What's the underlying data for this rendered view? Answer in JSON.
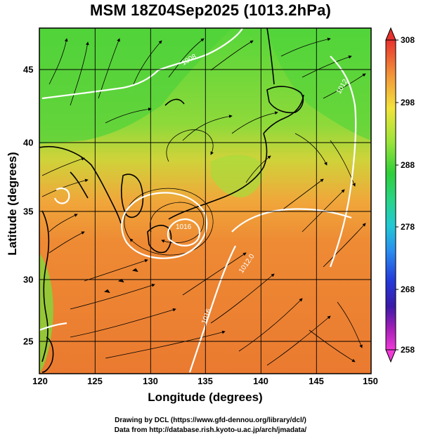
{
  "title": "MSM 18Z04Sep2025 (1013.2hPa)",
  "axes": {
    "xlabel": "Longitude (degrees)",
    "ylabel": "Latitude  (degrees)",
    "x_ticks": [
      "120",
      "125",
      "130",
      "135",
      "140",
      "145",
      "150"
    ],
    "y_ticks": [
      "25",
      "30",
      "35",
      "40",
      "45"
    ],
    "xlim": [
      120,
      150
    ],
    "ylim": [
      22.4,
      47.6
    ]
  },
  "colorbar": {
    "ticks": [
      "308",
      "298",
      "288",
      "278",
      "268",
      "258"
    ],
    "range": [
      258,
      308
    ]
  },
  "isobar_labels": [
    "1008",
    "1012",
    "1016",
    "1012.0",
    "1016"
  ],
  "credits": {
    "line1": "Drawing by DCL (https://www.gfd-dennou.org/library/dcl/)",
    "line2": "Data from http://database.rish.kyoto-u.ac.jp/arch/jmadata/"
  }
}
